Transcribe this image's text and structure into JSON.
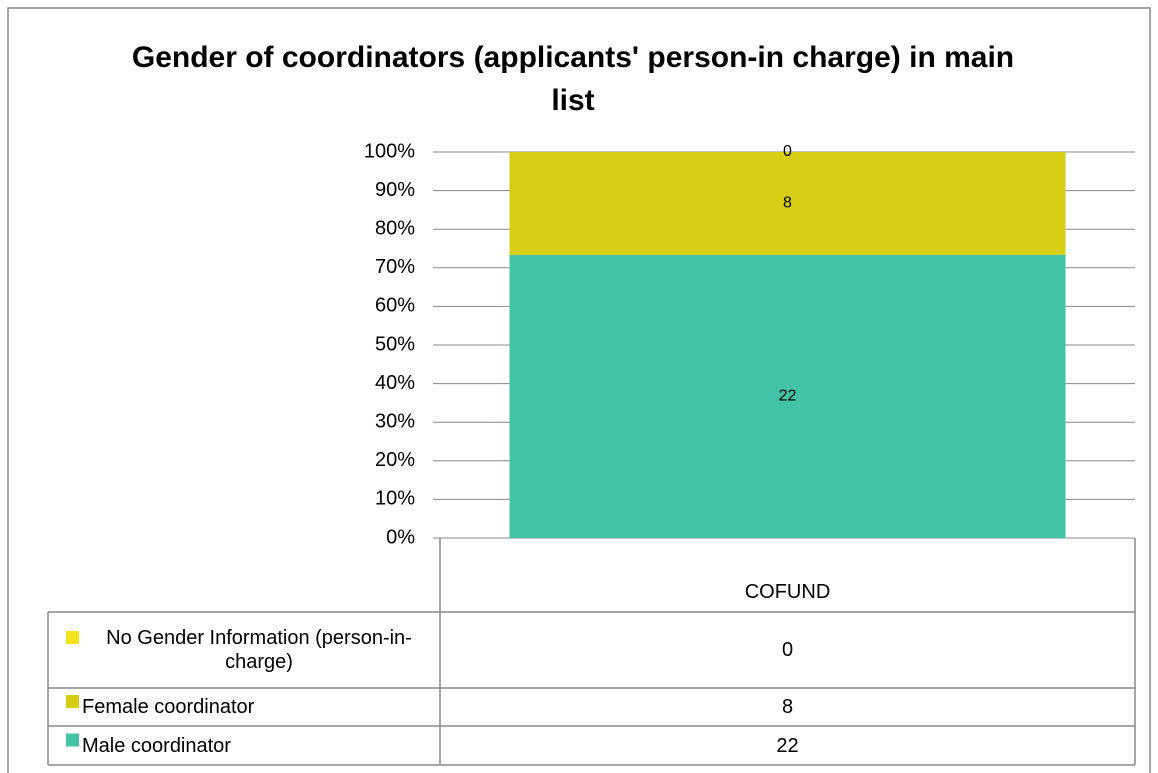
{
  "chart_data": {
    "type": "bar",
    "stacking": "percent",
    "title": "Gender of coordinators (applicants' person-in charge) in main list",
    "categories": [
      "COFUND"
    ],
    "series": [
      {
        "name": "Male coordinator",
        "color": "#43c3a5",
        "values": [
          22
        ]
      },
      {
        "name": "Female coordinator",
        "color": "#d6cd14",
        "values": [
          8
        ]
      },
      {
        "name": "No Gender Information (person-in-charge)",
        "color": "#f2e31c",
        "values": [
          0
        ]
      }
    ],
    "ylim": [
      0,
      100
    ],
    "yticks": [
      {
        "value": 0,
        "label": "0%"
      },
      {
        "value": 10,
        "label": "10%"
      },
      {
        "value": 20,
        "label": "20%"
      },
      {
        "value": 30,
        "label": "30%"
      },
      {
        "value": 40,
        "label": "40%"
      },
      {
        "value": 50,
        "label": "50%"
      },
      {
        "value": 60,
        "label": "60%"
      },
      {
        "value": 70,
        "label": "70%"
      },
      {
        "value": 80,
        "label": "80%"
      },
      {
        "value": 90,
        "label": "90%"
      },
      {
        "value": 100,
        "label": "100%"
      }
    ],
    "grid": true,
    "data_table": true
  }
}
